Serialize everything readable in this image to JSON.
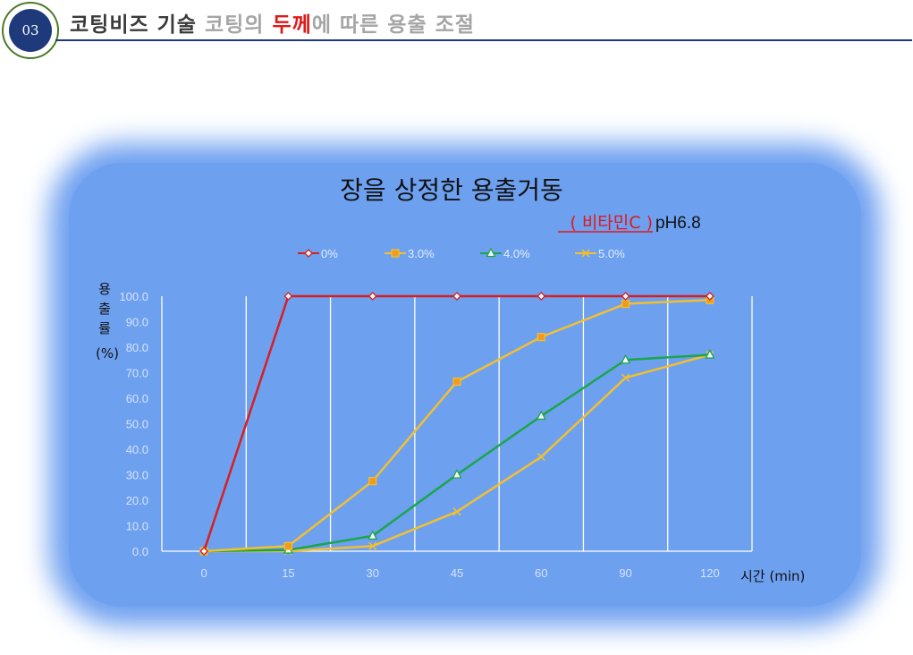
{
  "header": {
    "badge": "03",
    "title_dark": "코팅비즈 기술 ",
    "title_gray": "코팅의 ",
    "title_red": "두께",
    "title_gray2": "에 따른 용출 조절"
  },
  "chart_data": {
    "type": "line",
    "title": "장을 상정한 용출거동",
    "subtitle_red": "( 비타민C )",
    "subtitle_black": "pH6.8",
    "xlabel": "시간 (min)",
    "ylabel": [
      "용",
      "출",
      "률",
      "(%)"
    ],
    "categories": [
      "0",
      "15",
      "30",
      "45",
      "60",
      "90",
      "120"
    ],
    "yticks": [
      "0.0",
      "10.0",
      "20.0",
      "30.0",
      "40.0",
      "50.0",
      "60.0",
      "70.0",
      "80.0",
      "90.0",
      "100.0"
    ],
    "ylim": [
      0,
      100
    ],
    "grid": "vertical",
    "legend_position": "top",
    "series": [
      {
        "name": "0%",
        "color": "#d81e1e",
        "marker": "diamond",
        "values": [
          0,
          100,
          100,
          100,
          100,
          100,
          100
        ]
      },
      {
        "name": "3.0%",
        "color": "#f0c030",
        "marker": "square",
        "values": [
          0,
          2,
          27.5,
          66.5,
          84,
          97,
          98.5
        ]
      },
      {
        "name": "4.0%",
        "color": "#1aa64a",
        "marker": "triangle",
        "values": [
          0,
          0.5,
          6,
          30,
          53,
          75,
          77
        ]
      },
      {
        "name": "5.0%",
        "color": "#f0c030",
        "marker": "x",
        "values": [
          0,
          0,
          2,
          15.5,
          37,
          68,
          77
        ]
      }
    ]
  }
}
